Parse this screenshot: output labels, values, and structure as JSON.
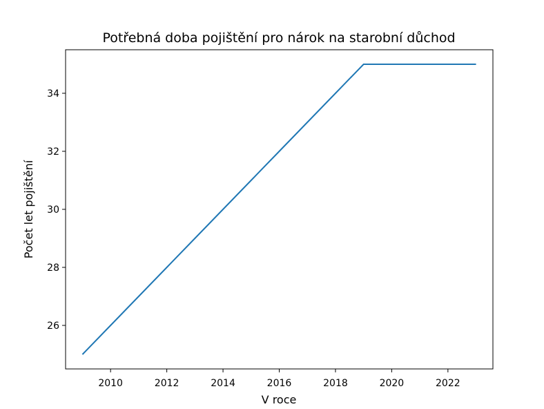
{
  "chart_data": {
    "type": "line",
    "title": "Potřebná doba pojištění pro nárok na starobní důchod",
    "xlabel": "V roce",
    "ylabel": "Počet let pojištění",
    "xlim": [
      2008.4,
      2023.6
    ],
    "ylim": [
      24.5,
      35.5
    ],
    "xticks": [
      2010,
      2012,
      2014,
      2016,
      2018,
      2020,
      2022
    ],
    "yticks": [
      26,
      28,
      30,
      32,
      34
    ],
    "grid": false,
    "series": [
      {
        "color": "#1f77b4",
        "x": [
          2009,
          2010,
          2011,
          2012,
          2013,
          2014,
          2015,
          2016,
          2017,
          2018,
          2019,
          2020,
          2021,
          2022,
          2023
        ],
        "y": [
          25,
          26,
          27,
          28,
          29,
          30,
          31,
          32,
          33,
          34,
          35,
          35,
          35,
          35,
          35
        ]
      }
    ]
  }
}
